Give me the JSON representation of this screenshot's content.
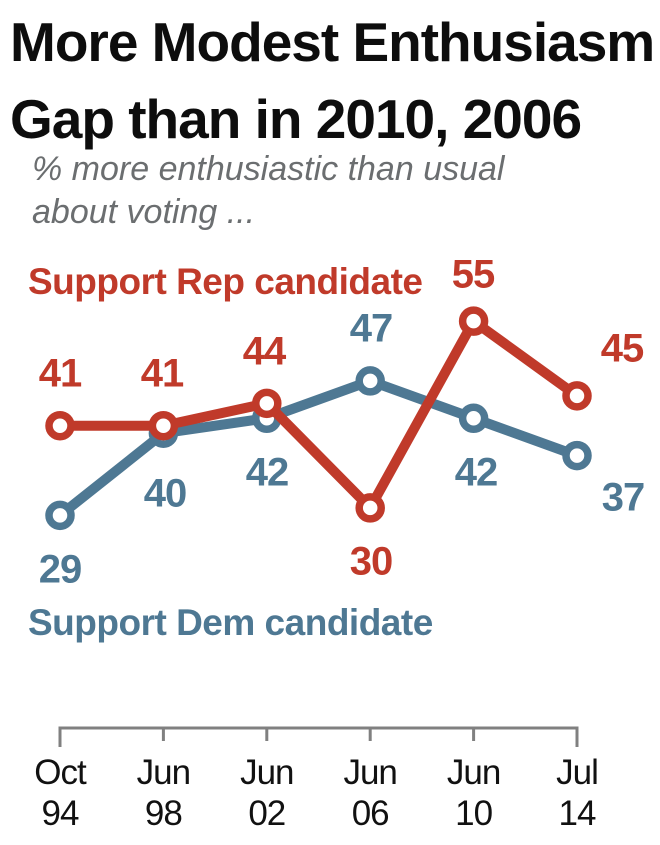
{
  "title": {
    "line1": "More Modest Enthusiasm",
    "line2": "Gap than in 2010, 2006"
  },
  "subtitle": {
    "line1": "% more enthusiastic than usual",
    "line2": "about voting ..."
  },
  "colors": {
    "rep": "#c03a2a",
    "dem": "#4e7893",
    "axis": "#808080",
    "title_text": "#0d0d0d",
    "subtitle_text": "#6b6e70",
    "tick_label": "#111111",
    "background": "#ffffff"
  },
  "chart_data": {
    "type": "line",
    "title": "More Modest Enthusiasm Gap than in 2010, 2006",
    "subtitle": "% more enthusiastic than usual about voting ...",
    "categories": [
      [
        "Oct",
        "94"
      ],
      [
        "Jun",
        "98"
      ],
      [
        "Jun",
        "02"
      ],
      [
        "Jun",
        "06"
      ],
      [
        "Jun",
        "10"
      ],
      [
        "Jul",
        "14"
      ]
    ],
    "series": [
      {
        "name": "Support Rep candidate",
        "color_key": "rep",
        "values": [
          41,
          41,
          44,
          30,
          55,
          45
        ]
      },
      {
        "name": "Support Dem candidate",
        "color_key": "dem",
        "values": [
          29,
          40,
          42,
          47,
          42,
          37
        ]
      }
    ],
    "ylim": [
      25,
      60
    ],
    "grid": false,
    "legend_position": "inline-colored-labels",
    "marker": "open-circle",
    "value_labels_shown": true
  }
}
